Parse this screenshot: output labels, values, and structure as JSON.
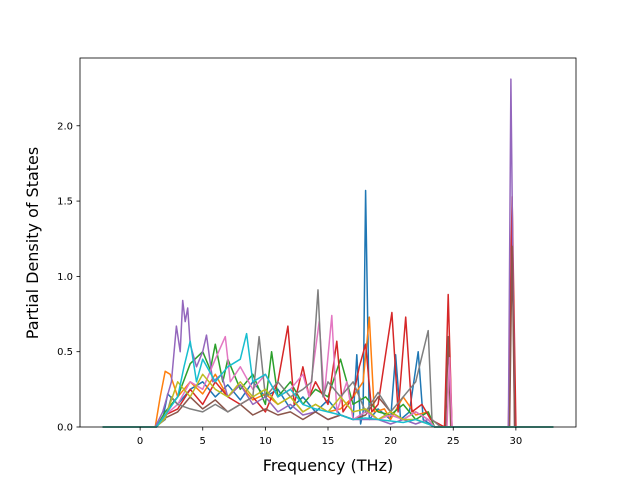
{
  "chart_data": {
    "type": "line",
    "title": "",
    "xlabel": "Frequency (THz)",
    "ylabel": "Partial Density of States",
    "xlim": [
      -4.8,
      34.8
    ],
    "ylim": [
      0.0,
      2.45
    ],
    "xticks": [
      0,
      5,
      10,
      15,
      20,
      25,
      30
    ],
    "xtick_labels": [
      "0",
      "5",
      "10",
      "15",
      "20",
      "25",
      "30"
    ],
    "yticks": [
      0.0,
      0.5,
      1.0,
      1.5,
      2.0
    ],
    "ytick_labels": [
      "0.0",
      "0.5",
      "1.0",
      "1.5",
      "2.0"
    ],
    "grid": false,
    "legend": "none",
    "series": [
      {
        "color": "#1f77b4",
        "points": [
          [
            -3,
            0
          ],
          [
            1.2,
            0
          ],
          [
            1.8,
            0.05
          ],
          [
            2.2,
            0.22
          ],
          [
            3,
            0.15
          ],
          [
            4,
            0.25
          ],
          [
            5,
            0.3
          ],
          [
            6,
            0.2
          ],
          [
            7,
            0.28
          ],
          [
            8,
            0.18
          ],
          [
            9,
            0.3
          ],
          [
            10,
            0.2
          ],
          [
            11,
            0.25
          ],
          [
            12,
            0.12
          ],
          [
            13,
            0.2
          ],
          [
            14,
            0.1
          ],
          [
            15,
            0.18
          ],
          [
            16,
            0.08
          ],
          [
            17,
            0.05
          ],
          [
            17.3,
            0.48
          ],
          [
            17.6,
            0.02
          ],
          [
            17.8,
            0.1
          ],
          [
            18.0,
            1.57
          ],
          [
            18.3,
            0.05
          ],
          [
            19,
            0.12
          ],
          [
            20,
            0.05
          ],
          [
            20.4,
            0.48
          ],
          [
            20.8,
            0.05
          ],
          [
            21.5,
            0.1
          ],
          [
            22.2,
            0.5
          ],
          [
            22.6,
            0.05
          ],
          [
            23.5,
            0
          ],
          [
            33,
            0
          ]
        ]
      },
      {
        "color": "#ff7f0e",
        "points": [
          [
            -3,
            0
          ],
          [
            1.2,
            0
          ],
          [
            1.6,
            0.2
          ],
          [
            2,
            0.37
          ],
          [
            2.4,
            0.35
          ],
          [
            3,
            0.2
          ],
          [
            4,
            0.3
          ],
          [
            5,
            0.22
          ],
          [
            6,
            0.35
          ],
          [
            7,
            0.2
          ],
          [
            8,
            0.28
          ],
          [
            9,
            0.18
          ],
          [
            10,
            0.22
          ],
          [
            11,
            0.15
          ],
          [
            12,
            0.2
          ],
          [
            13,
            0.1
          ],
          [
            14,
            0.15
          ],
          [
            15,
            0.1
          ],
          [
            16,
            0.12
          ],
          [
            17,
            0.2
          ],
          [
            17.8,
            0.3
          ],
          [
            18.3,
            0.73
          ],
          [
            18.7,
            0.1
          ],
          [
            19.5,
            0.12
          ],
          [
            20,
            0.05
          ],
          [
            21,
            0.2
          ],
          [
            22,
            0.08
          ],
          [
            23,
            0.1
          ],
          [
            23.5,
            0
          ],
          [
            33,
            0
          ]
        ]
      },
      {
        "color": "#2ca02c",
        "points": [
          [
            -3,
            0
          ],
          [
            1.3,
            0
          ],
          [
            2,
            0.1
          ],
          [
            3,
            0.2
          ],
          [
            4,
            0.42
          ],
          [
            5,
            0.5
          ],
          [
            5.6,
            0.38
          ],
          [
            6,
            0.55
          ],
          [
            6.6,
            0.3
          ],
          [
            7,
            0.45
          ],
          [
            8,
            0.25
          ],
          [
            9,
            0.35
          ],
          [
            10,
            0.15
          ],
          [
            10.5,
            0.5
          ],
          [
            11,
            0.2
          ],
          [
            12,
            0.3
          ],
          [
            13,
            0.15
          ],
          [
            14,
            0.25
          ],
          [
            15,
            0.2
          ],
          [
            16,
            0.45
          ],
          [
            17,
            0.15
          ],
          [
            18,
            0.2
          ],
          [
            19,
            0.1
          ],
          [
            20,
            0.08
          ],
          [
            21,
            0.15
          ],
          [
            22,
            0.05
          ],
          [
            23,
            0.1
          ],
          [
            23.5,
            0
          ],
          [
            33,
            0
          ]
        ]
      },
      {
        "color": "#d62728",
        "points": [
          [
            -3,
            0
          ],
          [
            1.3,
            0
          ],
          [
            2,
            0.08
          ],
          [
            3,
            0.12
          ],
          [
            4,
            0.25
          ],
          [
            5,
            0.15
          ],
          [
            6,
            0.3
          ],
          [
            7,
            0.2
          ],
          [
            8,
            0.15
          ],
          [
            9,
            0.2
          ],
          [
            10,
            0.1
          ],
          [
            11,
            0.3
          ],
          [
            11.8,
            0.67
          ],
          [
            12.3,
            0.15
          ],
          [
            13,
            0.4
          ],
          [
            13.5,
            0.2
          ],
          [
            14,
            0.3
          ],
          [
            15,
            0.15
          ],
          [
            15.7,
            0.57
          ],
          [
            16.2,
            0.1
          ],
          [
            17,
            0.2
          ],
          [
            17.5,
            0.4
          ],
          [
            18,
            0.55
          ],
          [
            18.5,
            0.1
          ],
          [
            19,
            0.15
          ],
          [
            20.1,
            0.76
          ],
          [
            20.6,
            0.1
          ],
          [
            21.2,
            0.73
          ],
          [
            21.7,
            0.1
          ],
          [
            22.5,
            0.15
          ],
          [
            23.2,
            0.05
          ],
          [
            24.3,
            0
          ],
          [
            24.6,
            0.88
          ],
          [
            24.9,
            0
          ],
          [
            29.4,
            0
          ],
          [
            29.7,
            1.53
          ],
          [
            30,
            0
          ],
          [
            33,
            0
          ]
        ]
      },
      {
        "color": "#9467bd",
        "points": [
          [
            -3,
            0
          ],
          [
            1.2,
            0
          ],
          [
            1.8,
            0.1
          ],
          [
            2.5,
            0.3
          ],
          [
            2.9,
            0.67
          ],
          [
            3.2,
            0.5
          ],
          [
            3.4,
            0.84
          ],
          [
            3.6,
            0.7
          ],
          [
            3.8,
            0.79
          ],
          [
            4,
            0.55
          ],
          [
            4.5,
            0.4
          ],
          [
            5,
            0.5
          ],
          [
            5.3,
            0.61
          ],
          [
            5.8,
            0.3
          ],
          [
            6.5,
            0.35
          ],
          [
            7,
            0.2
          ],
          [
            8,
            0.28
          ],
          [
            9,
            0.15
          ],
          [
            10,
            0.2
          ],
          [
            11,
            0.1
          ],
          [
            12,
            0.15
          ],
          [
            13,
            0.08
          ],
          [
            14,
            0.1
          ],
          [
            15,
            0.05
          ],
          [
            16,
            0.08
          ],
          [
            17,
            0.05
          ],
          [
            18,
            0.05
          ],
          [
            19,
            0.05
          ],
          [
            20,
            0.02
          ],
          [
            21,
            0.05
          ],
          [
            22,
            0.02
          ],
          [
            23,
            0.05
          ],
          [
            23.5,
            0
          ],
          [
            29.4,
            0
          ],
          [
            29.6,
            2.31
          ],
          [
            29.9,
            0
          ],
          [
            33,
            0
          ]
        ]
      },
      {
        "color": "#8c564b",
        "points": [
          [
            -3,
            0
          ],
          [
            1.3,
            0
          ],
          [
            2,
            0.06
          ],
          [
            3,
            0.1
          ],
          [
            4,
            0.2
          ],
          [
            5,
            0.12
          ],
          [
            6,
            0.18
          ],
          [
            7,
            0.1
          ],
          [
            8,
            0.15
          ],
          [
            9,
            0.08
          ],
          [
            10,
            0.12
          ],
          [
            11,
            0.08
          ],
          [
            12,
            0.1
          ],
          [
            13,
            0.05
          ],
          [
            14,
            0.1
          ],
          [
            15,
            0.05
          ],
          [
            16,
            0.08
          ],
          [
            17,
            0.05
          ],
          [
            18,
            0.08
          ],
          [
            19,
            0.2
          ],
          [
            20,
            0.1
          ],
          [
            21,
            0.05
          ],
          [
            22,
            0.1
          ],
          [
            23,
            0.05
          ],
          [
            23.5,
            0
          ],
          [
            24.4,
            0
          ],
          [
            24.6,
            0.6
          ],
          [
            24.8,
            0
          ],
          [
            29.5,
            0
          ],
          [
            29.7,
            1.2
          ],
          [
            29.9,
            0
          ],
          [
            33,
            0
          ]
        ]
      },
      {
        "color": "#e377c2",
        "points": [
          [
            -3,
            0
          ],
          [
            1.3,
            0
          ],
          [
            2,
            0.08
          ],
          [
            3,
            0.15
          ],
          [
            4,
            0.3
          ],
          [
            5,
            0.25
          ],
          [
            6,
            0.45
          ],
          [
            6.8,
            0.6
          ],
          [
            7.2,
            0.3
          ],
          [
            8,
            0.4
          ],
          [
            9,
            0.25
          ],
          [
            10,
            0.35
          ],
          [
            11,
            0.2
          ],
          [
            12,
            0.25
          ],
          [
            13,
            0.35
          ],
          [
            13.5,
            0.2
          ],
          [
            14.3,
            0.7
          ],
          [
            14.7,
            0.2
          ],
          [
            15.3,
            0.74
          ],
          [
            15.7,
            0.1
          ],
          [
            16.5,
            0.3
          ],
          [
            17,
            0.05
          ],
          [
            18,
            0.1
          ],
          [
            19,
            0.05
          ],
          [
            20,
            0.08
          ],
          [
            21,
            0.05
          ],
          [
            22,
            0.1
          ],
          [
            23,
            0.05
          ],
          [
            23.5,
            0
          ],
          [
            24.5,
            0
          ],
          [
            24.7,
            0.46
          ],
          [
            24.9,
            0
          ],
          [
            33,
            0
          ]
        ]
      },
      {
        "color": "#7f7f7f",
        "points": [
          [
            -3,
            0
          ],
          [
            1.2,
            0
          ],
          [
            2,
            0.05
          ],
          [
            2.5,
            0.2
          ],
          [
            3,
            0.15
          ],
          [
            4,
            0.12
          ],
          [
            5,
            0.1
          ],
          [
            6,
            0.15
          ],
          [
            7,
            0.1
          ],
          [
            8,
            0.15
          ],
          [
            9,
            0.2
          ],
          [
            9.5,
            0.6
          ],
          [
            10,
            0.2
          ],
          [
            11,
            0.3
          ],
          [
            12,
            0.2
          ],
          [
            13,
            0.25
          ],
          [
            13.7,
            0.3
          ],
          [
            14.2,
            0.91
          ],
          [
            14.6,
            0.2
          ],
          [
            15,
            0.3
          ],
          [
            16,
            0.2
          ],
          [
            17,
            0.3
          ],
          [
            18,
            0.1
          ],
          [
            19,
            0.23
          ],
          [
            20,
            0.1
          ],
          [
            21,
            0.2
          ],
          [
            22,
            0.3
          ],
          [
            23,
            0.64
          ],
          [
            23.3,
            0.05
          ],
          [
            24,
            0
          ],
          [
            33,
            0
          ]
        ]
      },
      {
        "color": "#bcbd22",
        "points": [
          [
            -3,
            0
          ],
          [
            1.3,
            0
          ],
          [
            2,
            0.06
          ],
          [
            3,
            0.3
          ],
          [
            4,
            0.2
          ],
          [
            5,
            0.35
          ],
          [
            6,
            0.25
          ],
          [
            7,
            0.2
          ],
          [
            8,
            0.3
          ],
          [
            9,
            0.2
          ],
          [
            10,
            0.25
          ],
          [
            11,
            0.15
          ],
          [
            12,
            0.2
          ],
          [
            13,
            0.1
          ],
          [
            14,
            0.15
          ],
          [
            15,
            0.1
          ],
          [
            16,
            0.2
          ],
          [
            17,
            0.1
          ],
          [
            18,
            0.12
          ],
          [
            19,
            0.05
          ],
          [
            20,
            0.1
          ],
          [
            21,
            0.05
          ],
          [
            22,
            0.05
          ],
          [
            23,
            0.02
          ],
          [
            23.5,
            0
          ],
          [
            33,
            0
          ]
        ]
      },
      {
        "color": "#17becf",
        "points": [
          [
            -3,
            0
          ],
          [
            1.3,
            0
          ],
          [
            2,
            0.08
          ],
          [
            3,
            0.2
          ],
          [
            3.5,
            0.4
          ],
          [
            4,
            0.57
          ],
          [
            4.5,
            0.3
          ],
          [
            5,
            0.45
          ],
          [
            6,
            0.3
          ],
          [
            7,
            0.4
          ],
          [
            8,
            0.45
          ],
          [
            8.5,
            0.62
          ],
          [
            9,
            0.3
          ],
          [
            10,
            0.35
          ],
          [
            11,
            0.2
          ],
          [
            12,
            0.25
          ],
          [
            13,
            0.15
          ],
          [
            14,
            0.12
          ],
          [
            15,
            0.1
          ],
          [
            16,
            0.08
          ],
          [
            17,
            0.05
          ],
          [
            18,
            0.06
          ],
          [
            19,
            0.05
          ],
          [
            20,
            0.04
          ],
          [
            21,
            0.03
          ],
          [
            22,
            0.05
          ],
          [
            23,
            0.02
          ],
          [
            23.5,
            0
          ],
          [
            33,
            0
          ]
        ]
      }
    ]
  }
}
